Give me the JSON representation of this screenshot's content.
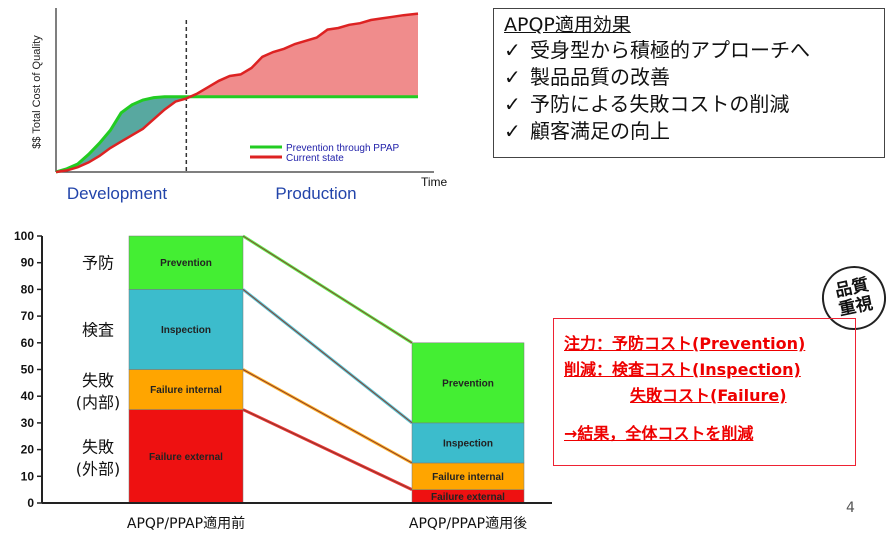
{
  "chart_data": [
    {
      "type": "line",
      "ylabel": "$$ Total Cost of Quality",
      "xlabel": "Time",
      "phases": [
        "Development",
        "Production"
      ],
      "colors": {
        "prevention": "#22cc22",
        "current": "#dd2222",
        "gap_fill": "#58a8a0",
        "loss_fill": "#f08c8c"
      },
      "series": [
        {
          "name": "Prevention through PPAP",
          "color": "#22cc22",
          "x": [
            0,
            3,
            6,
            9,
            12,
            15,
            18,
            21,
            24,
            27,
            30,
            33,
            36,
            39,
            42,
            45,
            48,
            51,
            54,
            57,
            60,
            63,
            66,
            69,
            72,
            75,
            78,
            81,
            84,
            87,
            90,
            93,
            96,
            100
          ],
          "values": [
            0,
            2,
            5,
            11,
            18,
            26,
            37,
            42,
            45,
            46.5,
            47,
            47,
            47,
            47,
            47,
            47,
            47,
            47,
            47,
            47,
            47,
            47,
            47,
            47,
            47,
            47,
            47,
            47,
            47,
            47,
            47,
            47,
            47,
            47
          ]
        },
        {
          "name": "Current state",
          "color": "#dd2222",
          "x": [
            0,
            3,
            6,
            9,
            12,
            15,
            18,
            21,
            24,
            27,
            30,
            33,
            36,
            39,
            42,
            45,
            48,
            51,
            54,
            57,
            60,
            63,
            66,
            69,
            72,
            75,
            78,
            81,
            84,
            87,
            90,
            93,
            96,
            100
          ],
          "values": [
            0,
            1,
            3,
            6,
            10,
            15,
            19,
            23,
            27,
            33,
            39,
            44,
            46,
            49,
            53,
            57,
            60,
            61,
            65,
            72,
            75,
            77,
            80,
            82,
            84,
            89,
            90,
            92,
            93,
            95,
            96,
            97,
            98,
            99
          ]
        }
      ],
      "divider_x": 36,
      "ylim": [
        0,
        100
      ],
      "xlim": [
        0,
        100
      ]
    },
    {
      "type": "bar",
      "stacked": true,
      "categories": [
        "APQP/PPAP適用前",
        "APQP/PPAP適用後"
      ],
      "ylim": [
        0,
        100
      ],
      "yticks": [
        0,
        10,
        20,
        30,
        40,
        50,
        60,
        70,
        80,
        90,
        100
      ],
      "row_labels": [
        {
          "text": "予防",
          "at": 90
        },
        {
          "text": "検査",
          "at": 65
        },
        {
          "text": "失敗\n(内部)",
          "at": 42
        },
        {
          "text": "失敗\n(外部)",
          "at": 17
        }
      ],
      "series": [
        {
          "name": "Failure external",
          "color": "#ee1111",
          "values": [
            35,
            5
          ]
        },
        {
          "name": "Failure internal",
          "color": "#ffa500",
          "values": [
            15,
            10
          ]
        },
        {
          "name": "Inspection",
          "color": "#3cbccc",
          "values": [
            30,
            15
          ]
        },
        {
          "name": "Prevention",
          "color": "#44ee33",
          "values": [
            20,
            30
          ]
        }
      ]
    }
  ],
  "apqp_box": {
    "title": "APQP適用効果",
    "items": [
      "受身型から積極的アプローチへ",
      "製品品質の改善",
      "予防による失敗コストの削減",
      "顧客満足の向上"
    ],
    "check": "✓"
  },
  "stamp": {
    "line1": "品質",
    "line2": "重視"
  },
  "summary": {
    "line1": "注力：予防コスト(Prevention)",
    "line2": "削減：検査コスト(Inspection)",
    "line3": "失敗コスト(Failure)",
    "line4": "→結果，全体コストを削減"
  },
  "page_number": "4"
}
